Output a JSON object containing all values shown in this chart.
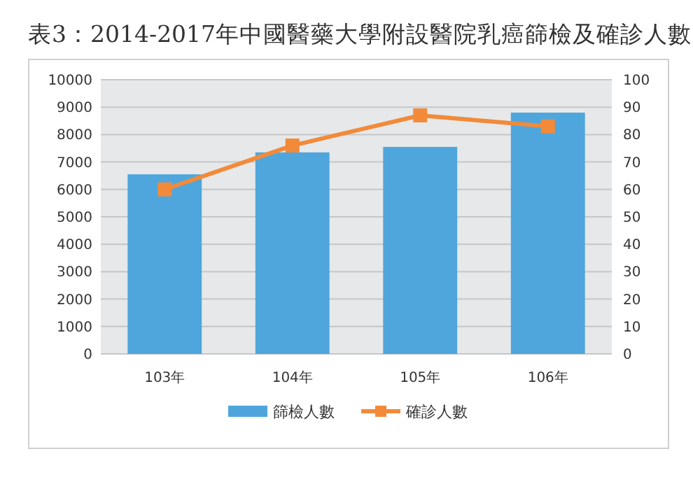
{
  "chart_data": {
    "type": "bar",
    "title": "表3：2014-2017年中國醫藥大學附設醫院乳癌篩檢及確診人數",
    "categories": [
      "103年",
      "104年",
      "105年",
      "106年"
    ],
    "series": [
      {
        "name": "篩檢人數",
        "color": "#4ea6dc",
        "values": [
          6550,
          7350,
          7550,
          8800
        ]
      },
      {
        "name": "確診人數",
        "type": "line",
        "axis": "y2",
        "color": "#f28a3a",
        "values": [
          60,
          76,
          87,
          83
        ]
      }
    ],
    "ylim": [
      0,
      10000
    ],
    "yticks": [
      0,
      1000,
      2000,
      3000,
      4000,
      5000,
      6000,
      7000,
      8000,
      9000,
      10000
    ],
    "y2lim": [
      0,
      100
    ],
    "y2ticks": [
      0,
      10,
      20,
      30,
      40,
      50,
      60,
      70,
      80,
      90,
      100
    ],
    "grid": "y",
    "legend": "bottom",
    "marker": "square",
    "line_style": "solid"
  }
}
